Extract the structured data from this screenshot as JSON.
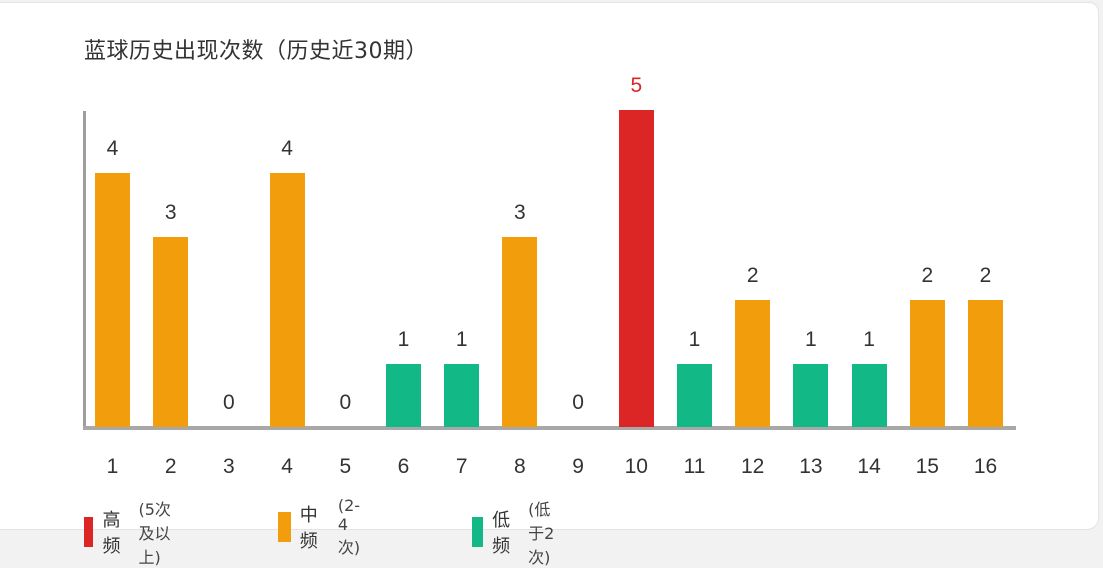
{
  "title": "蓝球历史出现次数（历史近30期）",
  "colors": {
    "high": "#dc2626",
    "mid": "#f29e0c",
    "low": "#12b886",
    "axis": "#a8a8a8"
  },
  "legend": [
    {
      "name": "高频",
      "desc": "(5次及以上)",
      "color": "#dc2626"
    },
    {
      "name": "中频",
      "desc": "(2-4次)",
      "color": "#f29e0c"
    },
    {
      "name": "低频",
      "desc": "(低于2次)",
      "color": "#12b886"
    }
  ],
  "chart_data": {
    "type": "bar",
    "title": "蓝球历史出现次数（历史近30期）",
    "xlabel": "",
    "ylabel": "",
    "categories": [
      "1",
      "2",
      "3",
      "4",
      "5",
      "6",
      "7",
      "8",
      "9",
      "10",
      "11",
      "12",
      "13",
      "14",
      "15",
      "16"
    ],
    "values": [
      4,
      3,
      0,
      4,
      0,
      1,
      1,
      3,
      0,
      5,
      1,
      2,
      1,
      1,
      2,
      2
    ],
    "category_class": [
      "mid",
      "mid",
      "none",
      "mid",
      "none",
      "low",
      "low",
      "mid",
      "none",
      "high",
      "low",
      "mid",
      "low",
      "low",
      "mid",
      "mid"
    ],
    "ylim": [
      0,
      5
    ],
    "grid": false,
    "data_labels": true,
    "legend_position": "bottom",
    "legend": [
      "高频 (5次及以上)",
      "中频 (2-4次)",
      "低频 (低于2次)"
    ]
  }
}
